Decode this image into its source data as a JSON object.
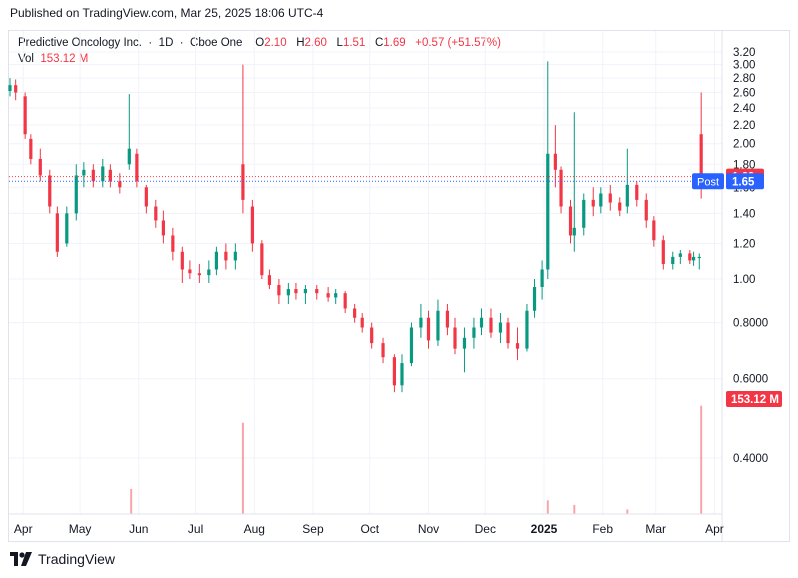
{
  "header": {
    "published": "Published on TradingView.com, Mar 25, 2025 18:06 UTC-4"
  },
  "legend": {
    "symbol": "Predictive Oncology Inc.",
    "sep": "·",
    "interval": "1D",
    "exchange": "Cboe One",
    "o_label": "O",
    "o_value": "2.10",
    "h_label": "H",
    "h_value": "2.60",
    "l_label": "L",
    "l_value": "1.51",
    "c_label": "C",
    "c_value": "1.69",
    "change": "+0.57 (+51.57%)",
    "vol_label": "Vol",
    "vol_value": "153.12 M"
  },
  "footer": {
    "brand": "TradingView"
  },
  "colors": {
    "up": "#089981",
    "down": "#f23645",
    "post": "#2962ff",
    "grid": "#f0f3fa"
  },
  "chart_data": {
    "type": "candlestick",
    "title": "Predictive Oncology Inc. · 1D · Cboe One",
    "y_scale": "log",
    "y_ticks": [
      "3.20",
      "3.00",
      "2.80",
      "2.60",
      "2.40",
      "2.20",
      "2.00",
      "1.80",
      "1.60",
      "1.40",
      "1.20",
      "1.00",
      "0.8000",
      "0.6000",
      "0.4000"
    ],
    "y_tick_values": [
      3.2,
      3.0,
      2.8,
      2.6,
      2.4,
      2.2,
      2.0,
      1.8,
      1.6,
      1.4,
      1.2,
      1.0,
      0.8,
      0.6,
      0.4
    ],
    "y_range": [
      0.3,
      3.3
    ],
    "x_ticks": [
      "Apr",
      "May",
      "Jun",
      "Jul",
      "Aug",
      "Sep",
      "Oct",
      "Nov",
      "Dec",
      "2025",
      "Feb",
      "Mar",
      "Apr"
    ],
    "x_range": [
      "2024-03-25",
      "2025-04-05"
    ],
    "price_markers": [
      {
        "label": "1.69",
        "value": 1.69,
        "color": "#f23645"
      },
      {
        "label": "1.65",
        "value": 1.65,
        "color": "#2962ff",
        "tag": "Post"
      }
    ],
    "volume_marker": {
      "label": "153.12 M",
      "color": "#f23645"
    },
    "series": [
      {
        "date": "2024-03-25",
        "o": 2.62,
        "h": 2.8,
        "l": 2.55,
        "c": 2.7
      },
      {
        "date": "2024-03-28",
        "o": 2.7,
        "h": 2.78,
        "l": 2.5,
        "c": 2.6
      },
      {
        "date": "2024-04-02",
        "o": 2.55,
        "h": 2.6,
        "l": 2.05,
        "c": 2.1
      },
      {
        "date": "2024-04-05",
        "o": 2.05,
        "h": 2.1,
        "l": 1.8,
        "c": 1.85
      },
      {
        "date": "2024-04-10",
        "o": 1.85,
        "h": 1.95,
        "l": 1.65,
        "c": 1.7
      },
      {
        "date": "2024-04-15",
        "o": 1.7,
        "h": 1.75,
        "l": 1.4,
        "c": 1.45
      },
      {
        "date": "2024-04-19",
        "o": 1.4,
        "h": 1.45,
        "l": 1.12,
        "c": 1.15
      },
      {
        "date": "2024-04-24",
        "o": 1.2,
        "h": 1.45,
        "l": 1.18,
        "c": 1.4
      },
      {
        "date": "2024-04-29",
        "o": 1.4,
        "h": 1.8,
        "l": 1.35,
        "c": 1.7
      },
      {
        "date": "2024-05-03",
        "o": 1.7,
        "h": 1.82,
        "l": 1.6,
        "c": 1.75
      },
      {
        "date": "2024-05-08",
        "o": 1.75,
        "h": 1.8,
        "l": 1.6,
        "c": 1.65
      },
      {
        "date": "2024-05-13",
        "o": 1.65,
        "h": 1.85,
        "l": 1.6,
        "c": 1.78
      },
      {
        "date": "2024-05-17",
        "o": 1.75,
        "h": 1.8,
        "l": 1.6,
        "c": 1.65
      },
      {
        "date": "2024-05-22",
        "o": 1.65,
        "h": 1.72,
        "l": 1.55,
        "c": 1.6
      },
      {
        "date": "2024-05-27",
        "o": 1.8,
        "h": 2.58,
        "l": 1.75,
        "c": 1.95
      },
      {
        "date": "2024-05-31",
        "o": 1.9,
        "h": 1.95,
        "l": 1.6,
        "c": 1.65
      },
      {
        "date": "2024-06-05",
        "o": 1.6,
        "h": 1.62,
        "l": 1.4,
        "c": 1.45
      },
      {
        "date": "2024-06-10",
        "o": 1.45,
        "h": 1.5,
        "l": 1.3,
        "c": 1.35
      },
      {
        "date": "2024-06-14",
        "o": 1.35,
        "h": 1.42,
        "l": 1.2,
        "c": 1.25
      },
      {
        "date": "2024-06-19",
        "o": 1.25,
        "h": 1.3,
        "l": 1.1,
        "c": 1.15
      },
      {
        "date": "2024-06-24",
        "o": 1.15,
        "h": 1.18,
        "l": 0.98,
        "c": 1.05
      },
      {
        "date": "2024-06-28",
        "o": 1.05,
        "h": 1.1,
        "l": 1.0,
        "c": 1.03
      },
      {
        "date": "2024-07-03",
        "o": 1.03,
        "h": 1.08,
        "l": 0.98,
        "c": 1.02
      },
      {
        "date": "2024-07-08",
        "o": 1.02,
        "h": 1.1,
        "l": 0.98,
        "c": 1.05
      },
      {
        "date": "2024-07-12",
        "o": 1.05,
        "h": 1.18,
        "l": 1.02,
        "c": 1.15
      },
      {
        "date": "2024-07-17",
        "o": 1.15,
        "h": 1.2,
        "l": 1.05,
        "c": 1.1
      },
      {
        "date": "2024-07-22",
        "o": 1.1,
        "h": 1.2,
        "l": 1.05,
        "c": 1.15
      },
      {
        "date": "2024-07-26",
        "o": 1.8,
        "h": 3.0,
        "l": 1.4,
        "c": 1.5
      },
      {
        "date": "2024-07-31",
        "o": 1.45,
        "h": 1.5,
        "l": 1.15,
        "c": 1.2
      },
      {
        "date": "2024-08-05",
        "o": 1.2,
        "h": 1.22,
        "l": 1.0,
        "c": 1.02
      },
      {
        "date": "2024-08-09",
        "o": 1.02,
        "h": 1.05,
        "l": 0.95,
        "c": 0.97
      },
      {
        "date": "2024-08-14",
        "o": 0.97,
        "h": 1.0,
        "l": 0.88,
        "c": 0.92
      },
      {
        "date": "2024-08-19",
        "o": 0.92,
        "h": 0.98,
        "l": 0.88,
        "c": 0.95
      },
      {
        "date": "2024-08-23",
        "o": 0.95,
        "h": 0.98,
        "l": 0.9,
        "c": 0.93
      },
      {
        "date": "2024-08-28",
        "o": 0.93,
        "h": 0.97,
        "l": 0.88,
        "c": 0.95
      },
      {
        "date": "2024-09-03",
        "o": 0.95,
        "h": 0.97,
        "l": 0.9,
        "c": 0.93
      },
      {
        "date": "2024-09-09",
        "o": 0.93,
        "h": 0.96,
        "l": 0.89,
        "c": 0.91
      },
      {
        "date": "2024-09-13",
        "o": 0.91,
        "h": 0.95,
        "l": 0.88,
        "c": 0.93
      },
      {
        "date": "2024-09-18",
        "o": 0.93,
        "h": 0.94,
        "l": 0.84,
        "c": 0.86
      },
      {
        "date": "2024-09-23",
        "o": 0.86,
        "h": 0.88,
        "l": 0.8,
        "c": 0.82
      },
      {
        "date": "2024-09-27",
        "o": 0.82,
        "h": 0.84,
        "l": 0.76,
        "c": 0.78
      },
      {
        "date": "2024-10-02",
        "o": 0.78,
        "h": 0.8,
        "l": 0.7,
        "c": 0.72
      },
      {
        "date": "2024-10-08",
        "o": 0.72,
        "h": 0.74,
        "l": 0.65,
        "c": 0.67
      },
      {
        "date": "2024-10-14",
        "o": 0.67,
        "h": 0.68,
        "l": 0.56,
        "c": 0.58
      },
      {
        "date": "2024-10-18",
        "o": 0.58,
        "h": 0.68,
        "l": 0.56,
        "c": 0.65
      },
      {
        "date": "2024-10-23",
        "o": 0.65,
        "h": 0.8,
        "l": 0.64,
        "c": 0.78
      },
      {
        "date": "2024-10-28",
        "o": 0.78,
        "h": 0.88,
        "l": 0.74,
        "c": 0.82
      },
      {
        "date": "2024-11-01",
        "o": 0.82,
        "h": 0.85,
        "l": 0.7,
        "c": 0.73
      },
      {
        "date": "2024-11-06",
        "o": 0.73,
        "h": 0.9,
        "l": 0.71,
        "c": 0.85
      },
      {
        "date": "2024-11-11",
        "o": 0.85,
        "h": 0.88,
        "l": 0.75,
        "c": 0.78
      },
      {
        "date": "2024-11-15",
        "o": 0.78,
        "h": 0.82,
        "l": 0.68,
        "c": 0.7
      },
      {
        "date": "2024-11-20",
        "o": 0.7,
        "h": 0.78,
        "l": 0.62,
        "c": 0.74
      },
      {
        "date": "2024-11-25",
        "o": 0.74,
        "h": 0.82,
        "l": 0.7,
        "c": 0.78
      },
      {
        "date": "2024-11-29",
        "o": 0.78,
        "h": 0.86,
        "l": 0.75,
        "c": 0.82
      },
      {
        "date": "2024-12-04",
        "o": 0.82,
        "h": 0.86,
        "l": 0.74,
        "c": 0.76
      },
      {
        "date": "2024-12-09",
        "o": 0.76,
        "h": 0.84,
        "l": 0.72,
        "c": 0.8
      },
      {
        "date": "2024-12-13",
        "o": 0.8,
        "h": 0.82,
        "l": 0.7,
        "c": 0.72
      },
      {
        "date": "2024-12-18",
        "o": 0.72,
        "h": 0.78,
        "l": 0.66,
        "c": 0.7
      },
      {
        "date": "2024-12-23",
        "o": 0.7,
        "h": 0.88,
        "l": 0.69,
        "c": 0.85
      },
      {
        "date": "2024-12-27",
        "o": 0.85,
        "h": 1.0,
        "l": 0.82,
        "c": 0.96
      },
      {
        "date": "2024-12-31",
        "o": 0.96,
        "h": 1.1,
        "l": 0.9,
        "c": 1.05
      },
      {
        "date": "2025-01-03",
        "o": 1.05,
        "h": 3.05,
        "l": 1.0,
        "c": 1.9
      },
      {
        "date": "2025-01-07",
        "o": 1.9,
        "h": 2.2,
        "l": 1.6,
        "c": 1.75
      },
      {
        "date": "2025-01-10",
        "o": 1.75,
        "h": 1.78,
        "l": 1.4,
        "c": 1.45
      },
      {
        "date": "2025-01-15",
        "o": 1.45,
        "h": 1.5,
        "l": 1.2,
        "c": 1.25
      },
      {
        "date": "2025-01-17",
        "o": 1.25,
        "h": 2.35,
        "l": 1.15,
        "c": 1.3
      },
      {
        "date": "2025-01-22",
        "o": 1.3,
        "h": 1.55,
        "l": 1.25,
        "c": 1.5
      },
      {
        "date": "2025-01-27",
        "o": 1.5,
        "h": 1.6,
        "l": 1.38,
        "c": 1.45
      },
      {
        "date": "2025-01-31",
        "o": 1.45,
        "h": 1.6,
        "l": 1.4,
        "c": 1.55
      },
      {
        "date": "2025-02-05",
        "o": 1.55,
        "h": 1.62,
        "l": 1.42,
        "c": 1.48
      },
      {
        "date": "2025-02-10",
        "o": 1.48,
        "h": 1.52,
        "l": 1.38,
        "c": 1.42
      },
      {
        "date": "2025-02-14",
        "o": 1.45,
        "h": 1.95,
        "l": 1.4,
        "c": 1.62
      },
      {
        "date": "2025-02-19",
        "o": 1.62,
        "h": 1.65,
        "l": 1.45,
        "c": 1.5
      },
      {
        "date": "2025-02-24",
        "o": 1.5,
        "h": 1.55,
        "l": 1.3,
        "c": 1.35
      },
      {
        "date": "2025-02-28",
        "o": 1.35,
        "h": 1.38,
        "l": 1.18,
        "c": 1.22
      },
      {
        "date": "2025-03-05",
        "o": 1.22,
        "h": 1.25,
        "l": 1.05,
        "c": 1.08
      },
      {
        "date": "2025-03-10",
        "o": 1.08,
        "h": 1.15,
        "l": 1.05,
        "c": 1.12
      },
      {
        "date": "2025-03-14",
        "o": 1.12,
        "h": 1.16,
        "l": 1.08,
        "c": 1.14
      },
      {
        "date": "2025-03-19",
        "o": 1.14,
        "h": 1.16,
        "l": 1.08,
        "c": 1.1
      },
      {
        "date": "2025-03-21",
        "o": 1.1,
        "h": 1.15,
        "l": 1.07,
        "c": 1.12
      },
      {
        "date": "2025-03-24",
        "o": 1.12,
        "h": 1.14,
        "l": 1.05,
        "c": 1.12
      },
      {
        "date": "2025-03-25",
        "o": 2.1,
        "h": 2.6,
        "l": 1.51,
        "c": 1.69
      }
    ],
    "volume_spikes": [
      {
        "date": "2024-05-28",
        "rel": 0.22
      },
      {
        "date": "2024-07-26",
        "rel": 0.8
      },
      {
        "date": "2025-01-03",
        "rel": 0.12
      },
      {
        "date": "2025-01-17",
        "rel": 0.08
      },
      {
        "date": "2025-02-14",
        "rel": 0.04
      },
      {
        "date": "2025-03-25",
        "rel": 0.95
      }
    ]
  }
}
